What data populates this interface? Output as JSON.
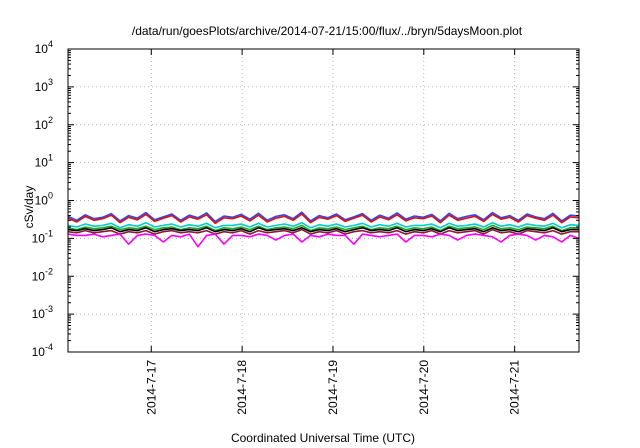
{
  "chart_data": {
    "type": "line",
    "title": "/data/run/goesPlots/archive/2014-07-21/15:00/flux/../bryn/5daysMoon.plot",
    "xlabel": "Coordinated Universal Time (UTC)",
    "ylabel": "cSv/day",
    "yscale": "log",
    "ylim": [
      0.0001,
      10000
    ],
    "xlim": [
      "2014-07-16 02:00",
      "2014-07-21 17:00"
    ],
    "grid": true,
    "legend": "none",
    "yticks": [
      {
        "base": "10",
        "exp": "4"
      },
      {
        "base": "10",
        "exp": "3"
      },
      {
        "base": "10",
        "exp": "2"
      },
      {
        "base": "10",
        "exp": "1"
      },
      {
        "base": "10",
        "exp": "0"
      },
      {
        "base": "10",
        "exp": "-1"
      },
      {
        "base": "10",
        "exp": "-2"
      },
      {
        "base": "10",
        "exp": "-3"
      },
      {
        "base": "10",
        "exp": "-4"
      }
    ],
    "xticks": [
      "2014-7-17",
      "2014-7-18",
      "2014-7-19",
      "2014-7-20",
      "2014-7-21"
    ],
    "series": [
      {
        "color": "#3344ee",
        "values": [
          0.38,
          0.3,
          0.42,
          0.33,
          0.36,
          0.45,
          0.29,
          0.4,
          0.34,
          0.48,
          0.31,
          0.37,
          0.44,
          0.3,
          0.41,
          0.35,
          0.47,
          0.28,
          0.39,
          0.36,
          0.43,
          0.32,
          0.46,
          0.3,
          0.38,
          0.42,
          0.33,
          0.49,
          0.29,
          0.4,
          0.35,
          0.44,
          0.31,
          0.37,
          0.45,
          0.3,
          0.41,
          0.34,
          0.47,
          0.32,
          0.39,
          0.36,
          0.43,
          0.29,
          0.46,
          0.33,
          0.38,
          0.42,
          0.31,
          0.48,
          0.35,
          0.4,
          0.3,
          0.44,
          0.37,
          0.33,
          0.46,
          0.29,
          0.41,
          0.39
        ]
      },
      {
        "color": "#dd1111",
        "values": [
          0.34,
          0.27,
          0.38,
          0.3,
          0.33,
          0.41,
          0.26,
          0.36,
          0.31,
          0.43,
          0.28,
          0.34,
          0.4,
          0.27,
          0.37,
          0.32,
          0.42,
          0.25,
          0.35,
          0.33,
          0.39,
          0.29,
          0.41,
          0.27,
          0.34,
          0.38,
          0.3,
          0.44,
          0.26,
          0.36,
          0.32,
          0.4,
          0.28,
          0.34,
          0.41,
          0.27,
          0.37,
          0.31,
          0.42,
          0.29,
          0.35,
          0.33,
          0.39,
          0.26,
          0.41,
          0.3,
          0.34,
          0.38,
          0.28,
          0.43,
          0.32,
          0.36,
          0.27,
          0.4,
          0.34,
          0.3,
          0.41,
          0.26,
          0.37,
          0.35
        ]
      },
      {
        "color": "#00cccc",
        "values": [
          0.22,
          0.2,
          0.24,
          0.21,
          0.22,
          0.25,
          0.19,
          0.23,
          0.21,
          0.26,
          0.2,
          0.22,
          0.24,
          0.2,
          0.23,
          0.21,
          0.25,
          0.19,
          0.22,
          0.22,
          0.24,
          0.2,
          0.25,
          0.2,
          0.22,
          0.24,
          0.21,
          0.26,
          0.19,
          0.23,
          0.21,
          0.24,
          0.2,
          0.22,
          0.25,
          0.2,
          0.23,
          0.21,
          0.25,
          0.2,
          0.22,
          0.22,
          0.24,
          0.19,
          0.25,
          0.21,
          0.22,
          0.24,
          0.2,
          0.26,
          0.21,
          0.23,
          0.2,
          0.24,
          0.22,
          0.21,
          0.25,
          0.19,
          0.23,
          0.22
        ]
      },
      {
        "color": "#22aa22",
        "values": [
          0.19,
          0.17,
          0.2,
          0.18,
          0.19,
          0.21,
          0.17,
          0.19,
          0.18,
          0.21,
          0.17,
          0.19,
          0.2,
          0.17,
          0.19,
          0.18,
          0.21,
          0.16,
          0.19,
          0.18,
          0.2,
          0.17,
          0.21,
          0.17,
          0.19,
          0.2,
          0.18,
          0.22,
          0.16,
          0.19,
          0.18,
          0.2,
          0.17,
          0.19,
          0.21,
          0.17,
          0.19,
          0.18,
          0.21,
          0.17,
          0.19,
          0.18,
          0.2,
          0.16,
          0.21,
          0.18,
          0.19,
          0.2,
          0.17,
          0.22,
          0.18,
          0.19,
          0.17,
          0.2,
          0.19,
          0.18,
          0.21,
          0.16,
          0.19,
          0.19
        ]
      },
      {
        "color": "#000000",
        "values": [
          0.17,
          0.16,
          0.18,
          0.16,
          0.17,
          0.19,
          0.15,
          0.17,
          0.16,
          0.19,
          0.15,
          0.17,
          0.18,
          0.16,
          0.17,
          0.16,
          0.19,
          0.15,
          0.17,
          0.16,
          0.18,
          0.15,
          0.19,
          0.16,
          0.17,
          0.18,
          0.16,
          0.19,
          0.15,
          0.17,
          0.16,
          0.18,
          0.15,
          0.17,
          0.19,
          0.16,
          0.17,
          0.16,
          0.19,
          0.15,
          0.17,
          0.16,
          0.18,
          0.15,
          0.19,
          0.16,
          0.17,
          0.18,
          0.15,
          0.19,
          0.16,
          0.17,
          0.15,
          0.18,
          0.17,
          0.16,
          0.19,
          0.15,
          0.17,
          0.17
        ]
      },
      {
        "color": "#8a1a3a",
        "values": [
          0.15,
          0.14,
          0.16,
          0.14,
          0.15,
          0.16,
          0.13,
          0.15,
          0.14,
          0.16,
          0.13,
          0.15,
          0.16,
          0.14,
          0.15,
          0.14,
          0.16,
          0.13,
          0.15,
          0.14,
          0.16,
          0.13,
          0.16,
          0.14,
          0.15,
          0.16,
          0.14,
          0.17,
          0.13,
          0.15,
          0.14,
          0.16,
          0.13,
          0.15,
          0.16,
          0.14,
          0.15,
          0.14,
          0.16,
          0.13,
          0.15,
          0.14,
          0.16,
          0.13,
          0.16,
          0.14,
          0.15,
          0.16,
          0.13,
          0.17,
          0.14,
          0.15,
          0.13,
          0.16,
          0.15,
          0.14,
          0.16,
          0.13,
          0.15,
          0.15
        ]
      },
      {
        "color": "#ff00ff",
        "values": [
          0.13,
          0.12,
          0.12,
          0.13,
          0.11,
          0.12,
          0.13,
          0.07,
          0.12,
          0.13,
          0.12,
          0.08,
          0.12,
          0.11,
          0.13,
          0.06,
          0.12,
          0.13,
          0.07,
          0.12,
          0.12,
          0.11,
          0.13,
          0.12,
          0.09,
          0.12,
          0.13,
          0.08,
          0.12,
          0.11,
          0.13,
          0.12,
          0.12,
          0.07,
          0.13,
          0.12,
          0.11,
          0.12,
          0.13,
          0.08,
          0.12,
          0.12,
          0.11,
          0.13,
          0.12,
          0.09,
          0.12,
          0.13,
          0.12,
          0.11,
          0.08,
          0.12,
          0.13,
          0.12,
          0.09,
          0.12,
          0.11,
          0.08,
          0.12,
          0.1
        ]
      }
    ]
  }
}
